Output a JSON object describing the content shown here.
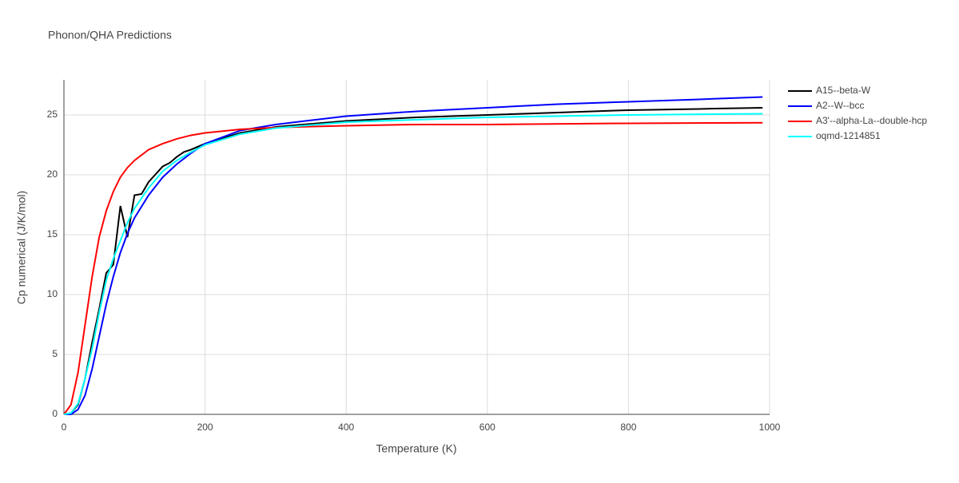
{
  "chart_data": {
    "type": "line",
    "title": "Phonon/QHA Predictions",
    "x_label": "Temperature (K)",
    "y_label": "Cp numerical (J/K/mol)",
    "xlim": [
      0,
      1000
    ],
    "ylim": [
      0,
      27.93
    ],
    "xticks": [
      0,
      200,
      400,
      600,
      800,
      1000
    ],
    "yticks": [
      0,
      5,
      10,
      15,
      20,
      25
    ],
    "grid": true,
    "legend": "right",
    "series": [
      {
        "name": "A15--beta-W",
        "color": "#000000",
        "x": [
          0,
          10,
          20,
          30,
          40,
          50,
          60,
          70,
          80,
          90,
          100,
          110,
          120,
          140,
          150,
          160,
          170,
          180,
          200,
          250,
          300,
          400,
          500,
          600,
          700,
          800,
          900,
          990
        ],
        "values": [
          0,
          0.1,
          0.8,
          3,
          6,
          8.8,
          11.8,
          12.5,
          17.4,
          14.8,
          18.3,
          18.4,
          19.4,
          20.7,
          21,
          21.5,
          21.9,
          22.1,
          22.6,
          23.5,
          24.0,
          24.5,
          24.8,
          25.0,
          25.2,
          25.4,
          25.5,
          25.6
        ]
      },
      {
        "name": "A2--W--bcc",
        "color": "#0000ff",
        "x": [
          0,
          10,
          20,
          30,
          40,
          50,
          60,
          70,
          80,
          90,
          100,
          120,
          140,
          160,
          180,
          200,
          250,
          300,
          400,
          500,
          600,
          700,
          800,
          900,
          990
        ],
        "values": [
          0,
          0,
          0.4,
          1.6,
          3.8,
          6.5,
          9.2,
          11.5,
          13.5,
          15.1,
          16.4,
          18.3,
          19.8,
          20.9,
          21.8,
          22.6,
          23.7,
          24.2,
          24.9,
          25.3,
          25.6,
          25.9,
          26.1,
          26.3,
          26.5
        ]
      },
      {
        "name": "A3'--alpha-La--double-hcp",
        "color": "#ff0000",
        "x": [
          0,
          10,
          20,
          30,
          40,
          50,
          60,
          70,
          80,
          90,
          100,
          120,
          140,
          160,
          180,
          200,
          250,
          300,
          400,
          500,
          600,
          800,
          990
        ],
        "values": [
          0,
          0.8,
          3.5,
          7.5,
          11.5,
          14.8,
          17,
          18.6,
          19.8,
          20.6,
          21.2,
          22.1,
          22.6,
          23,
          23.3,
          23.5,
          23.8,
          23.95,
          24.1,
          24.2,
          24.2,
          24.3,
          24.35
        ]
      },
      {
        "name": "oqmd-1214851",
        "color": "#00ffff",
        "x": [
          0,
          10,
          20,
          30,
          40,
          50,
          60,
          70,
          80,
          90,
          100,
          120,
          140,
          160,
          180,
          200,
          250,
          300,
          400,
          500,
          600,
          700,
          800,
          990
        ],
        "values": [
          0,
          0.1,
          0.9,
          3,
          5.5,
          8.5,
          11.2,
          13,
          14.5,
          16,
          17.2,
          18.9,
          20.3,
          21.2,
          21.9,
          22.5,
          23.4,
          23.9,
          24.4,
          24.6,
          24.8,
          24.9,
          25.0,
          25.1
        ]
      }
    ]
  }
}
